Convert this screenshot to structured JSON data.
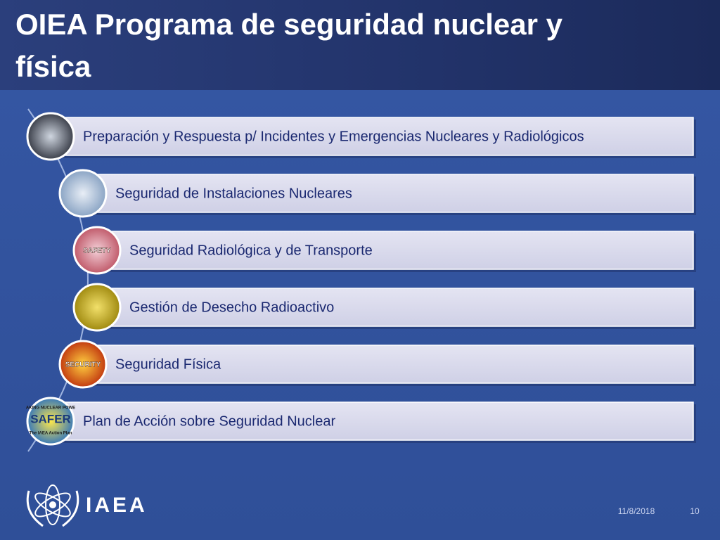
{
  "title": "OIEA Programa de seguridad nuclear y física",
  "items": [
    {
      "label": "Preparación y Respuesta p/ Incidentes y Emergencias Nucleares y Radiológicos"
    },
    {
      "label": "Seguridad de Instalaciones Nucleares"
    },
    {
      "label": "Seguridad Radiológica y de Transporte",
      "icon_text": "SAFETY"
    },
    {
      "label": "Gestión de Desecho Radioactivo"
    },
    {
      "label": "Seguridad Física",
      "icon_text": "SECURITY"
    },
    {
      "label": "Plan de Acción sobre Seguridad Nuclear",
      "icon_text": "SAFER",
      "icon_top": "AKING NUCLEAR POWE",
      "icon_bottom": "The IAEA Action Plan"
    }
  ],
  "footer": {
    "logo": "IAEA",
    "date": "11/8/2018",
    "page": "10"
  }
}
